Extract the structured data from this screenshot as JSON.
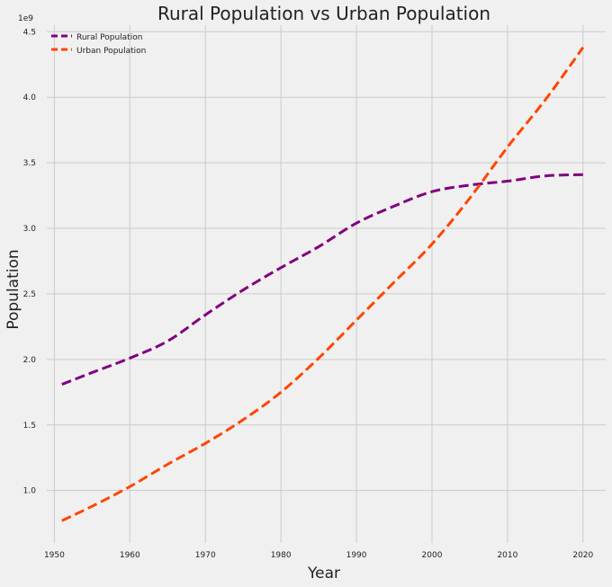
{
  "chart_data": {
    "type": "line",
    "title": "Rural Population vs Urban Population",
    "xlabel": "Year",
    "ylabel": "Population",
    "y_offset_label": "1e9",
    "xlim": [
      1949,
      2023
    ],
    "ylim": [
      0.6,
      4.55
    ],
    "x_ticks": [
      1950,
      1960,
      1970,
      1980,
      1990,
      2000,
      2010,
      2020
    ],
    "y_ticks": [
      1.0,
      1.5,
      2.0,
      2.5,
      3.0,
      3.5,
      4.0,
      4.5
    ],
    "legend_position": "top-left",
    "grid": true,
    "x": [
      1951,
      1955,
      1960,
      1965,
      1970,
      1975,
      1980,
      1985,
      1990,
      1995,
      2000,
      2005,
      2010,
      2015,
      2020
    ],
    "series": [
      {
        "name": "Rural Population",
        "color": "#800080",
        "values": [
          1.81,
          1.9,
          2.01,
          2.14,
          2.34,
          2.53,
          2.7,
          2.86,
          3.04,
          3.17,
          3.28,
          3.33,
          3.36,
          3.4,
          3.41
        ]
      },
      {
        "name": "Urban Population",
        "color": "#ff4500",
        "values": [
          0.77,
          0.88,
          1.03,
          1.2,
          1.36,
          1.54,
          1.75,
          2.01,
          2.3,
          2.59,
          2.88,
          3.23,
          3.62,
          3.98,
          4.38
        ]
      }
    ]
  }
}
